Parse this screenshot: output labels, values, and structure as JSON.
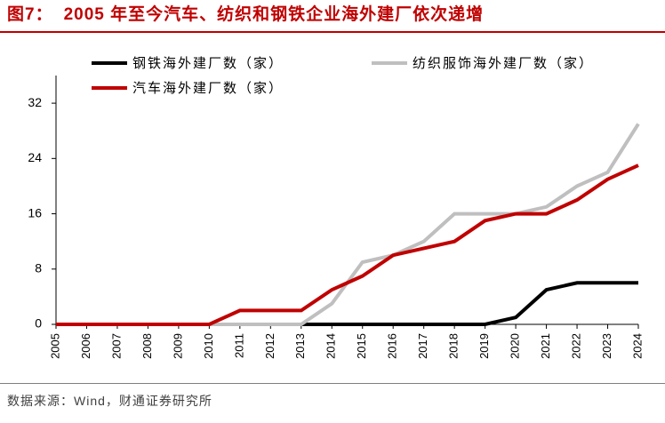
{
  "header": {
    "label": "图7：",
    "color": "#C00000"
  },
  "chart_data": {
    "type": "line",
    "title": "2005 年至今汽车、纺织和钢铁企业海外建厂依次递增",
    "x": [
      "2005",
      "2006",
      "2007",
      "2008",
      "2009",
      "2010",
      "2011",
      "2012",
      "2013",
      "2014",
      "2015",
      "2016",
      "2017",
      "2018",
      "2019",
      "2020",
      "2021",
      "2022",
      "2023",
      "2024"
    ],
    "series": [
      {
        "name": "钢铁海外建厂数（家）",
        "color": "#000000",
        "values": [
          0,
          0,
          0,
          0,
          0,
          0,
          0,
          0,
          0,
          0,
          0,
          0,
          0,
          0,
          0,
          1,
          5,
          6,
          6,
          6
        ]
      },
      {
        "name": "纺织服饰海外建厂数（家）",
        "color": "#BFBFBF",
        "values": [
          0,
          0,
          0,
          0,
          0,
          0,
          0,
          0,
          0,
          3,
          9,
          10,
          12,
          16,
          16,
          16,
          17,
          20,
          22,
          29
        ]
      },
      {
        "name": "汽车海外建厂数（家）",
        "color": "#C00000",
        "values": [
          0,
          0,
          0,
          0,
          0,
          0,
          2,
          2,
          2,
          5,
          7,
          10,
          11,
          12,
          15,
          16,
          16,
          18,
          21,
          23
        ]
      }
    ],
    "yticks": [
      0,
      8,
      16,
      24,
      32
    ],
    "ylim": [
      0,
      36
    ],
    "grid": false,
    "legend": "top"
  },
  "footer": {
    "source": "数据来源：Wind，财通证券研究所"
  }
}
